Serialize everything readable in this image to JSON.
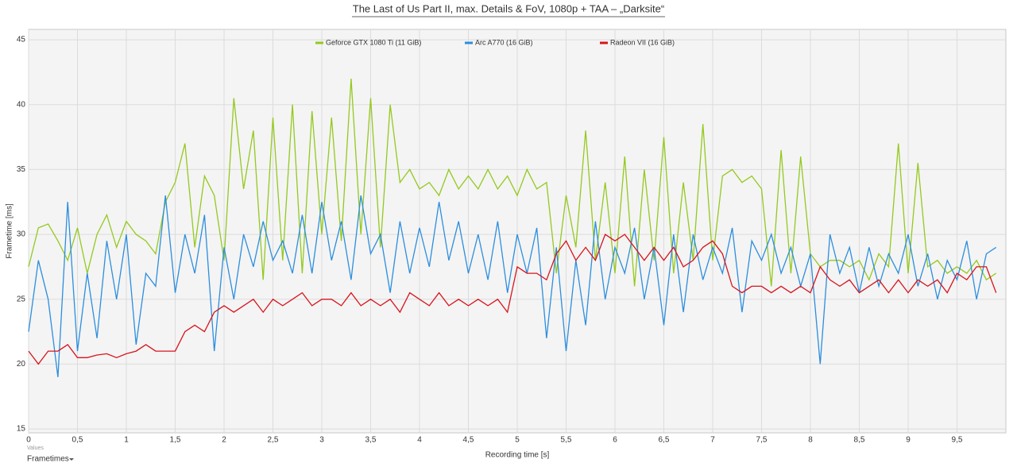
{
  "chart_data": {
    "type": "line",
    "title": "The Last of Us Part II, max. Details & FoV, 1080p + TAA – „Darksite“",
    "xlabel": "Recording time [s]",
    "ylabel": "Frametime [ms]",
    "x": [
      0,
      0.1,
      0.2,
      0.3,
      0.4,
      0.5,
      0.6,
      0.7,
      0.8,
      0.9,
      1,
      1.1,
      1.2,
      1.3,
      1.4,
      1.5,
      1.6,
      1.7,
      1.8,
      1.9,
      2,
      2.1,
      2.2,
      2.3,
      2.4,
      2.5,
      2.6,
      2.7,
      2.8,
      2.9,
      3,
      3.1,
      3.2,
      3.3,
      3.4,
      3.5,
      3.6,
      3.7,
      3.8,
      3.9,
      4,
      4.1,
      4.2,
      4.3,
      4.4,
      4.5,
      4.6,
      4.7,
      4.8,
      4.9,
      5,
      5.1,
      5.2,
      5.3,
      5.4,
      5.5,
      5.6,
      5.7,
      5.8,
      5.9,
      6,
      6.1,
      6.2,
      6.3,
      6.4,
      6.5,
      6.6,
      6.7,
      6.8,
      6.9,
      7,
      7.1,
      7.2,
      7.3,
      7.4,
      7.5,
      7.6,
      7.7,
      7.8,
      7.9,
      8,
      8.1,
      8.2,
      8.3,
      8.4,
      8.5,
      8.6,
      8.7,
      8.8,
      8.9,
      9,
      9.1,
      9.2,
      9.3,
      9.4,
      9.5,
      9.6,
      9.7,
      9.8,
      9.9
    ],
    "series": [
      {
        "name": "Geforce GTX 1080 Ti (11 GiB)",
        "color": "#94c91e",
        "values": [
          27.5,
          30.5,
          30.8,
          29.5,
          28,
          30.5,
          27,
          30,
          31.5,
          29,
          31,
          30,
          29.5,
          28.5,
          32.5,
          34,
          37,
          29,
          34.5,
          33,
          28,
          40.5,
          33.5,
          38,
          26.5,
          39,
          28,
          40,
          27,
          39.5,
          30,
          39,
          29.5,
          42,
          30,
          40.5,
          29,
          40,
          34,
          35,
          33.5,
          34,
          33,
          35,
          33.5,
          34.5,
          33.5,
          35,
          33.5,
          34.5,
          33,
          35,
          33.5,
          34,
          27,
          33,
          29,
          38,
          28,
          34,
          27,
          36,
          26,
          35,
          28,
          37.5,
          27,
          34,
          28,
          38.5,
          28,
          34.5,
          35,
          34,
          34.5,
          33.5,
          26,
          36.5,
          27,
          36,
          28.5,
          27.5,
          28,
          28,
          27.5,
          28,
          26.5,
          28.5,
          27.5,
          37,
          27,
          35.5,
          27.5,
          28,
          27,
          27.5,
          27,
          28,
          26.5,
          27
        ]
      },
      {
        "name": "Arc A770 (16 GiB)",
        "color": "#2b8ede",
        "values": [
          22.5,
          28,
          25,
          19,
          32.5,
          21,
          27,
          22,
          29.5,
          25,
          30,
          21.5,
          27,
          26,
          33,
          25.5,
          30,
          27,
          31.5,
          21,
          29,
          25,
          30,
          27.5,
          31,
          28,
          29.5,
          27,
          31.5,
          27,
          32.5,
          28,
          31,
          26.5,
          33,
          28.5,
          30,
          25.5,
          31,
          27,
          30.5,
          27.5,
          32.5,
          28,
          31,
          27,
          30,
          26.5,
          31,
          25.5,
          30,
          27,
          30.5,
          22,
          29,
          21,
          28,
          23,
          31,
          25,
          29,
          27,
          30.5,
          25,
          29,
          23,
          30,
          24,
          30,
          26.5,
          29,
          27,
          30.5,
          24,
          29.5,
          28,
          30,
          27,
          29,
          26,
          28.5,
          20,
          30,
          27,
          29,
          25.5,
          29,
          26,
          28.5,
          27,
          30,
          26,
          28.5,
          25,
          28,
          26.5,
          29.5,
          25,
          28.5,
          29
        ]
      },
      {
        "name": "Radeon VII (16 GiB)",
        "color": "#d8141c",
        "values": [
          21,
          20,
          21,
          21,
          21.5,
          20.5,
          20.5,
          20.7,
          20.8,
          20.5,
          20.8,
          21,
          21.5,
          21,
          21,
          21,
          22.5,
          23,
          22.5,
          24,
          24.5,
          24,
          24.5,
          25,
          24,
          25,
          24.5,
          25,
          25.5,
          24.5,
          25,
          25,
          24.5,
          25.5,
          24.5,
          25,
          24.5,
          25,
          24,
          25.5,
          25,
          24.5,
          25.5,
          24.5,
          25,
          24.5,
          25,
          24.5,
          25,
          24,
          27.5,
          27,
          27,
          26.5,
          28.5,
          29.5,
          28,
          29,
          28,
          30,
          29.5,
          30,
          29,
          28,
          29,
          28,
          29,
          27.5,
          28,
          29,
          29.5,
          28.5,
          26,
          25.5,
          26,
          26,
          25.5,
          26,
          25.5,
          26,
          25.5,
          27.5,
          26.5,
          26,
          26.5,
          25.5,
          26,
          26.5,
          25.5,
          26.5,
          25.5,
          26.5,
          26,
          26.5,
          25.5,
          27,
          26.5,
          27.5,
          27.5,
          25.5
        ]
      }
    ],
    "xlim": [
      0,
      10
    ],
    "xticks": [
      0,
      {
        "value": 0.5,
        "label": "0,5"
      },
      1,
      {
        "value": 1.5,
        "label": "1,5"
      },
      2,
      {
        "value": 2.5,
        "label": "2,5"
      },
      3,
      {
        "value": 3.5,
        "label": "3,5"
      },
      4,
      {
        "value": 4.5,
        "label": "4,5"
      },
      5,
      {
        "value": 5.5,
        "label": "5,5"
      },
      6,
      {
        "value": 6.5,
        "label": "6,5"
      },
      7,
      {
        "value": 7.5,
        "label": "7,5"
      },
      8,
      {
        "value": 8.5,
        "label": "8,5"
      },
      9,
      {
        "value": 9.5,
        "label": "9,5"
      }
    ],
    "ylim": [
      14.7,
      45.8
    ],
    "yticks": [
      15,
      20,
      25,
      30,
      35,
      40,
      45
    ],
    "grid": true,
    "legend": "top"
  },
  "ui": {
    "values_label": "Values",
    "series_selector": "Frametimes"
  }
}
